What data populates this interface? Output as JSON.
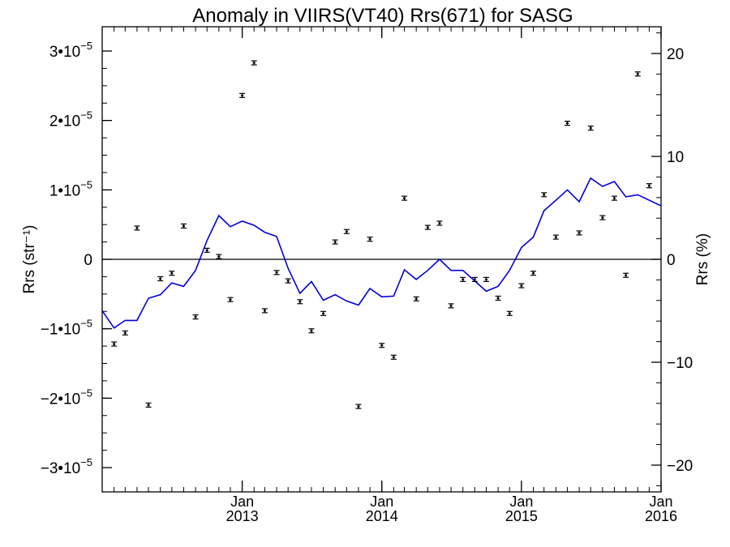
{
  "chart_data": {
    "type": "scatter",
    "title": "Anomaly in VIIRS(VT40) Rrs(671) for SASG",
    "ylabel_left": "Rrs (str⁻¹)",
    "ylabel_right": "Rrs (%)",
    "xlim": [
      "2012-01-01",
      "2016-01-01"
    ],
    "ylim_left": [
      -3.35e-05,
      3.35e-05
    ],
    "ylim_right": [
      -22.6,
      22.6
    ],
    "y_ticks_left": [
      {
        "value": 3e-05,
        "mantissa": "3",
        "prefix": "",
        "label": "3•10"
      },
      {
        "value": 2e-05,
        "mantissa": "2",
        "prefix": "",
        "label": "2•10"
      },
      {
        "value": 1e-05,
        "mantissa": "1",
        "prefix": "",
        "label": "1•10"
      },
      {
        "value": 0,
        "plain": "0"
      },
      {
        "value": -1e-05,
        "mantissa": "1",
        "prefix": "−",
        "label": "−1•10"
      },
      {
        "value": -2e-05,
        "mantissa": "2",
        "prefix": "−",
        "label": "−2•10"
      },
      {
        "value": -3e-05,
        "mantissa": "3",
        "prefix": "−",
        "label": "−3•10"
      }
    ],
    "y_tick_exponent": "−5",
    "y_ticks_right": [
      {
        "value": 20,
        "label": "20"
      },
      {
        "value": 10,
        "label": "10"
      },
      {
        "value": 0,
        "label": "0"
      },
      {
        "value": -10,
        "label": "−10"
      },
      {
        "value": -20,
        "label": "−20"
      }
    ],
    "x_major_ticks": [
      {
        "date": "2013-01-01",
        "month": "Jan",
        "year": "2013"
      },
      {
        "date": "2014-01-01",
        "month": "Jan",
        "year": "2014"
      },
      {
        "date": "2015-01-01",
        "month": "Jan",
        "year": "2015"
      },
      {
        "date": "2016-01-01",
        "month": "Jan",
        "year": "2016"
      }
    ],
    "series": [
      {
        "type": "scatter_errorbar",
        "axis": "left",
        "color": "#000000",
        "points": [
          {
            "x": "2012-02-01",
            "y": -1.22e-05
          },
          {
            "x": "2012-03-01",
            "y": -1.06e-05
          },
          {
            "x": "2012-04-01",
            "y": 4.5e-06
          },
          {
            "x": "2012-05-01",
            "y": -2.1e-05
          },
          {
            "x": "2012-06-01",
            "y": -2.8e-06
          },
          {
            "x": "2012-07-01",
            "y": -2e-06
          },
          {
            "x": "2012-08-01",
            "y": 4.8e-06
          },
          {
            "x": "2012-09-01",
            "y": -8.3e-06
          },
          {
            "x": "2012-10-01",
            "y": 1.3e-06
          },
          {
            "x": "2012-11-01",
            "y": 4e-07
          },
          {
            "x": "2012-12-01",
            "y": -5.8e-06
          },
          {
            "x": "2013-01-01",
            "y": 2.36e-05
          },
          {
            "x": "2013-02-01",
            "y": 2.83e-05
          },
          {
            "x": "2013-03-01",
            "y": -7.4e-06
          },
          {
            "x": "2013-04-01",
            "y": -1.9e-06
          },
          {
            "x": "2013-05-01",
            "y": -3.1e-06
          },
          {
            "x": "2013-06-01",
            "y": -6.1e-06
          },
          {
            "x": "2013-07-01",
            "y": -1.03e-05
          },
          {
            "x": "2013-08-01",
            "y": -7.8e-06
          },
          {
            "x": "2013-09-01",
            "y": 2.5e-06
          },
          {
            "x": "2013-10-01",
            "y": 4e-06
          },
          {
            "x": "2013-11-01",
            "y": -2.12e-05
          },
          {
            "x": "2013-12-01",
            "y": 2.9e-06
          },
          {
            "x": "2014-01-01",
            "y": -1.24e-05
          },
          {
            "x": "2014-02-01",
            "y": -1.41e-05
          },
          {
            "x": "2014-03-01",
            "y": 8.8e-06
          },
          {
            "x": "2014-04-01",
            "y": -5.7e-06
          },
          {
            "x": "2014-05-01",
            "y": 4.6e-06
          },
          {
            "x": "2014-06-01",
            "y": 5.2e-06
          },
          {
            "x": "2014-07-01",
            "y": -6.7e-06
          },
          {
            "x": "2014-08-01",
            "y": -2.9e-06
          },
          {
            "x": "2014-09-01",
            "y": -2.9e-06
          },
          {
            "x": "2014-10-01",
            "y": -2.9e-06
          },
          {
            "x": "2014-11-01",
            "y": -5.6e-06
          },
          {
            "x": "2014-12-01",
            "y": -7.8e-06
          },
          {
            "x": "2015-01-01",
            "y": -3.8e-06
          },
          {
            "x": "2015-02-01",
            "y": -2e-06
          },
          {
            "x": "2015-03-01",
            "y": 9.3e-06
          },
          {
            "x": "2015-04-01",
            "y": 3.2e-06
          },
          {
            "x": "2015-05-01",
            "y": 1.96e-05
          },
          {
            "x": "2015-06-01",
            "y": 3.8e-06
          },
          {
            "x": "2015-07-01",
            "y": 1.89e-05
          },
          {
            "x": "2015-08-01",
            "y": 6e-06
          },
          {
            "x": "2015-09-01",
            "y": 8.8e-06
          },
          {
            "x": "2015-10-01",
            "y": -2.3e-06
          },
          {
            "x": "2015-11-01",
            "y": 2.67e-05
          },
          {
            "x": "2015-12-01",
            "y": 1.06e-05
          }
        ]
      },
      {
        "type": "line",
        "axis": "left",
        "color": "#0000e0",
        "points": [
          {
            "x": "2012-01-01",
            "y": -7.4e-06
          },
          {
            "x": "2012-02-01",
            "y": -9.9e-06
          },
          {
            "x": "2012-03-01",
            "y": -8.8e-06
          },
          {
            "x": "2012-04-01",
            "y": -8.8e-06
          },
          {
            "x": "2012-05-01",
            "y": -5.6e-06
          },
          {
            "x": "2012-06-01",
            "y": -5.1e-06
          },
          {
            "x": "2012-07-01",
            "y": -3.4e-06
          },
          {
            "x": "2012-08-01",
            "y": -3.9e-06
          },
          {
            "x": "2012-09-01",
            "y": -1.6e-06
          },
          {
            "x": "2012-10-01",
            "y": 2.7e-06
          },
          {
            "x": "2012-11-01",
            "y": 6.3e-06
          },
          {
            "x": "2012-12-01",
            "y": 4.7e-06
          },
          {
            "x": "2013-01-01",
            "y": 5.5e-06
          },
          {
            "x": "2013-02-01",
            "y": 4.9e-06
          },
          {
            "x": "2013-03-01",
            "y": 3.9e-06
          },
          {
            "x": "2013-04-01",
            "y": 3.3e-06
          },
          {
            "x": "2013-05-01",
            "y": -1.3e-06
          },
          {
            "x": "2013-06-01",
            "y": -4.9e-06
          },
          {
            "x": "2013-07-01",
            "y": -3.2e-06
          },
          {
            "x": "2013-08-01",
            "y": -5.9e-06
          },
          {
            "x": "2013-09-01",
            "y": -5.1e-06
          },
          {
            "x": "2013-10-01",
            "y": -6e-06
          },
          {
            "x": "2013-11-01",
            "y": -6.6e-06
          },
          {
            "x": "2013-12-01",
            "y": -4.2e-06
          },
          {
            "x": "2014-01-01",
            "y": -5.4e-06
          },
          {
            "x": "2014-02-01",
            "y": -5.3e-06
          },
          {
            "x": "2014-03-01",
            "y": -1.5e-06
          },
          {
            "x": "2014-04-01",
            "y": -2.9e-06
          },
          {
            "x": "2014-05-01",
            "y": -1.6e-06
          },
          {
            "x": "2014-06-01",
            "y": 0.0
          },
          {
            "x": "2014-07-01",
            "y": -1.6e-06
          },
          {
            "x": "2014-08-01",
            "y": -1.6e-06
          },
          {
            "x": "2014-09-01",
            "y": -3.1e-06
          },
          {
            "x": "2014-10-01",
            "y": -4.6e-06
          },
          {
            "x": "2014-11-01",
            "y": -3.9e-06
          },
          {
            "x": "2014-12-01",
            "y": -1.6e-06
          },
          {
            "x": "2015-01-01",
            "y": 1.7e-06
          },
          {
            "x": "2015-02-01",
            "y": 3.2e-06
          },
          {
            "x": "2015-03-01",
            "y": 7e-06
          },
          {
            "x": "2015-04-01",
            "y": 8.5e-06
          },
          {
            "x": "2015-05-01",
            "y": 1e-05
          },
          {
            "x": "2015-06-01",
            "y": 8.3e-06
          },
          {
            "x": "2015-07-01",
            "y": 1.17e-05
          },
          {
            "x": "2015-08-01",
            "y": 1.05e-05
          },
          {
            "x": "2015-09-01",
            "y": 1.12e-05
          },
          {
            "x": "2015-10-01",
            "y": 9e-06
          },
          {
            "x": "2015-11-01",
            "y": 9.3e-06
          },
          {
            "x": "2016-01-01",
            "y": 7.7e-06
          }
        ]
      }
    ],
    "zero_line": true,
    "grid": false,
    "legend": "none"
  }
}
